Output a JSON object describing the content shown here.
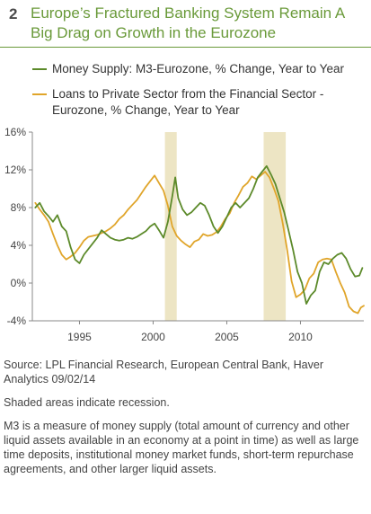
{
  "figure": {
    "number": "2",
    "title": "Europe’s Fractured Banking System Remain A Big Drag on Growth in the Eurozone"
  },
  "notes": {
    "source": "Source: LPL Financial Research, European Central Bank, Haver Analytics 09/02/14",
    "shading": "Shaded areas indicate recession.",
    "definition": "M3 is a measure of money supply (total amount of currency and other liquid assets available in an economy at a point in time) as well as large time deposits, institutional money market funds, short-term repurchase agreements, and other larger liquid assets."
  },
  "chart_data": {
    "type": "line",
    "xlim": [
      1991.8,
      2014.3
    ],
    "ylim": [
      -4,
      16
    ],
    "y_ticks": [
      -4,
      0,
      4,
      8,
      12,
      16
    ],
    "y_tick_labels": [
      "-4%",
      "0%",
      "4%",
      "8%",
      "12%",
      "16%"
    ],
    "x_ticks": [
      1995,
      2000,
      2005,
      2010
    ],
    "x_tick_labels": [
      "1995",
      "2000",
      "2005",
      "2010"
    ],
    "grid": false,
    "legend_placement": "top",
    "recessions": [
      [
        2000.8,
        2001.6
      ],
      [
        2007.5,
        2009.0
      ]
    ],
    "recession_color": "#ede5c4",
    "series": [
      {
        "name": "Money Supply: M3-Eurozone, % Change, Year to Year",
        "color": "#5c8a2a",
        "x": [
          1992.0,
          1992.3,
          1992.6,
          1992.9,
          1993.2,
          1993.5,
          1993.8,
          1994.1,
          1994.4,
          1994.7,
          1995.0,
          1995.3,
          1995.6,
          1995.9,
          1996.2,
          1996.5,
          1996.8,
          1997.1,
          1997.4,
          1997.7,
          1998.0,
          1998.3,
          1998.6,
          1998.9,
          1999.2,
          1999.5,
          1999.8,
          2000.1,
          2000.4,
          2000.7,
          2001.0,
          2001.3,
          2001.5,
          2001.7,
          2002.0,
          2002.3,
          2002.6,
          2002.9,
          2003.2,
          2003.5,
          2003.8,
          2004.1,
          2004.4,
          2004.7,
          2005.0,
          2005.3,
          2005.6,
          2005.9,
          2006.2,
          2006.5,
          2006.8,
          2007.1,
          2007.4,
          2007.7,
          2008.0,
          2008.3,
          2008.6,
          2008.9,
          2009.2,
          2009.5,
          2009.8,
          2010.1,
          2010.4,
          2010.7,
          2011.0,
          2011.3,
          2011.6,
          2011.9,
          2012.2,
          2012.5,
          2012.8,
          2013.1,
          2013.4,
          2013.7,
          2014.0,
          2014.2
        ],
        "values": [
          8.0,
          8.5,
          7.6,
          7.1,
          6.5,
          7.2,
          6.0,
          5.5,
          3.8,
          2.5,
          2.1,
          3.0,
          3.6,
          4.2,
          4.8,
          5.6,
          5.2,
          4.8,
          4.6,
          4.5,
          4.6,
          4.8,
          4.7,
          4.9,
          5.2,
          5.5,
          6.0,
          6.3,
          5.6,
          4.8,
          6.5,
          9.2,
          11.2,
          9.0,
          7.8,
          7.2,
          7.5,
          8.0,
          8.5,
          8.2,
          7.2,
          6.0,
          5.3,
          6.0,
          7.0,
          8.0,
          8.5,
          8.0,
          8.5,
          9.0,
          10.0,
          11.2,
          11.8,
          12.4,
          11.5,
          10.5,
          9.0,
          7.5,
          5.5,
          3.5,
          1.2,
          0.0,
          -2.2,
          -1.3,
          -0.8,
          1.2,
          2.2,
          2.0,
          2.6,
          3.0,
          3.2,
          2.6,
          1.5,
          0.7,
          0.8,
          1.6
        ]
      },
      {
        "name": "Loans to Private Sector from the Financial Sector - Eurozone, % Change, Year to Year",
        "color": "#e0a52a",
        "x": [
          1992.0,
          1992.3,
          1992.6,
          1992.9,
          1993.2,
          1993.5,
          1993.8,
          1994.1,
          1994.4,
          1994.7,
          1995.0,
          1995.3,
          1995.6,
          1995.9,
          1996.2,
          1996.5,
          1996.8,
          1997.1,
          1997.4,
          1997.7,
          1998.0,
          1998.3,
          1998.6,
          1998.9,
          1999.2,
          1999.5,
          1999.8,
          2000.1,
          2000.4,
          2000.7,
          2001.0,
          2001.3,
          2001.6,
          2001.9,
          2002.2,
          2002.5,
          2002.8,
          2003.1,
          2003.4,
          2003.7,
          2004.0,
          2004.3,
          2004.6,
          2004.9,
          2005.2,
          2005.5,
          2005.8,
          2006.1,
          2006.4,
          2006.7,
          2007.0,
          2007.3,
          2007.6,
          2007.9,
          2008.2,
          2008.5,
          2008.8,
          2009.1,
          2009.4,
          2009.7,
          2010.0,
          2010.3,
          2010.6,
          2010.9,
          2011.2,
          2011.5,
          2011.8,
          2012.1,
          2012.4,
          2012.7,
          2013.0,
          2013.3,
          2013.6,
          2013.9,
          2014.1,
          2014.3
        ],
        "values": [
          8.5,
          7.8,
          7.2,
          6.5,
          5.2,
          4.0,
          3.0,
          2.5,
          2.8,
          3.2,
          3.8,
          4.5,
          4.9,
          5.0,
          5.1,
          5.3,
          5.5,
          5.8,
          6.2,
          6.8,
          7.2,
          7.8,
          8.3,
          8.8,
          9.5,
          10.2,
          10.8,
          11.4,
          10.6,
          9.8,
          8.2,
          6.0,
          5.0,
          4.5,
          4.1,
          3.8,
          4.4,
          4.6,
          5.2,
          5.0,
          5.1,
          5.4,
          6.0,
          6.8,
          7.4,
          8.5,
          9.3,
          10.2,
          10.6,
          11.3,
          11.0,
          11.4,
          11.8,
          11.2,
          10.0,
          8.7,
          6.3,
          3.5,
          0.2,
          -1.5,
          -1.2,
          -0.7,
          0.5,
          1.0,
          2.2,
          2.5,
          2.6,
          2.5,
          1.2,
          0.0,
          -1.0,
          -2.5,
          -3.0,
          -3.2,
          -2.6,
          -2.4
        ]
      }
    ]
  }
}
